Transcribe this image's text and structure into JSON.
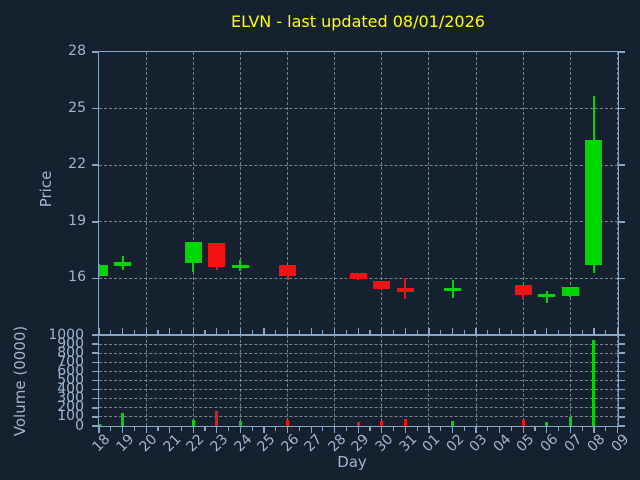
{
  "title": {
    "text": "ELVN - last updated 08/01/2026"
  },
  "colors": {
    "background": "#16212f",
    "spine": "#87a5c6",
    "tick_label": "#9db6d2",
    "axis_label": "#9db6d2",
    "grid": "#9aa2ab",
    "title": "#ffff00",
    "up": "#00d600",
    "down": "#f21212"
  },
  "price_axis": {
    "label": "Price",
    "ticks": [
      28,
      25,
      22,
      19,
      16
    ]
  },
  "volume_axis": {
    "label": "Volume (0000)",
    "ticks": [
      1000,
      900,
      800,
      700,
      600,
      500,
      400,
      300,
      200,
      100,
      0
    ]
  },
  "x_axis": {
    "label": "Day"
  },
  "chart_data": {
    "type": "candlestick",
    "title": "ELVN - last updated 08/01/2026",
    "xlabel": "Day",
    "ylabel_price": "Price",
    "ylabel_volume": "Volume (0000)",
    "x_categories": [
      "18",
      "19",
      "20",
      "21",
      "22",
      "23",
      "24",
      "25",
      "26",
      "27",
      "28",
      "29",
      "30",
      "31",
      "01",
      "02",
      "03",
      "04",
      "05",
      "06",
      "07",
      "08",
      "09"
    ],
    "price_ylim": [
      13,
      28
    ],
    "price_tick_values": [
      28,
      25,
      22,
      19,
      16
    ],
    "volume_ylim": [
      0,
      1000
    ],
    "volume_tick_values": [
      1000,
      900,
      800,
      700,
      600,
      500,
      400,
      300,
      200,
      100,
      0
    ],
    "grid": true,
    "gridline_days": [
      "20",
      "22",
      "24",
      "26",
      "28",
      "30",
      "01",
      "03",
      "05",
      "07",
      "09"
    ],
    "candles": [
      {
        "day": "18",
        "open": 16.15,
        "high": 16.74,
        "low": 16.1,
        "close": 16.72,
        "volume": 20
      },
      {
        "day": "19",
        "open": 16.67,
        "high": 17.2,
        "low": 16.46,
        "close": 16.88,
        "volume": 140
      },
      {
        "day": "22",
        "open": 16.8,
        "high": 17.95,
        "low": 16.35,
        "close": 17.95,
        "volume": 65
      },
      {
        "day": "23",
        "open": 17.9,
        "high": 17.9,
        "low": 16.45,
        "close": 16.58,
        "volume": 160
      },
      {
        "day": "24",
        "open": 16.68,
        "high": 16.98,
        "low": 16.4,
        "close": 16.73,
        "volume": 50
      },
      {
        "day": "26",
        "open": 16.7,
        "high": 16.72,
        "low": 15.92,
        "close": 16.15,
        "volume": 70
      },
      {
        "day": "29",
        "open": 16.28,
        "high": 16.3,
        "low": 15.9,
        "close": 15.95,
        "volume": 45
      },
      {
        "day": "30",
        "open": 15.84,
        "high": 15.85,
        "low": 15.43,
        "close": 15.45,
        "volume": 60
      },
      {
        "day": "31",
        "open": 15.48,
        "high": 16.0,
        "low": 14.9,
        "close": 15.3,
        "volume": 80
      },
      {
        "day": "02",
        "open": 15.4,
        "high": 15.9,
        "low": 14.96,
        "close": 15.5,
        "volume": 60
      },
      {
        "day": "05",
        "open": 15.64,
        "high": 15.65,
        "low": 14.9,
        "close": 15.11,
        "volume": 70
      },
      {
        "day": "06",
        "open": 15.05,
        "high": 15.35,
        "low": 14.72,
        "close": 15.18,
        "volume": 45
      },
      {
        "day": "07",
        "open": 15.08,
        "high": 15.53,
        "low": 15.02,
        "close": 15.52,
        "volume": 95
      },
      {
        "day": "08",
        "open": 16.72,
        "high": 25.65,
        "low": 16.3,
        "close": 23.32,
        "volume": 950
      }
    ]
  }
}
